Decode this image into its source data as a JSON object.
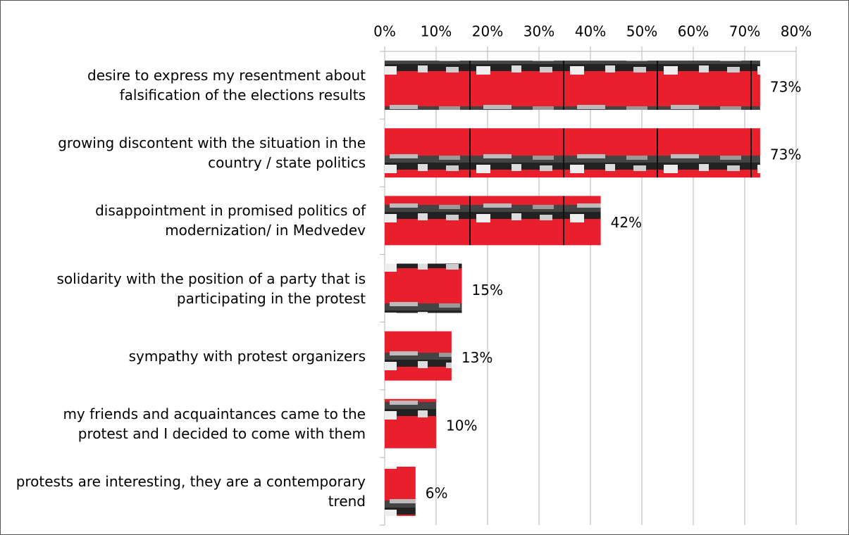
{
  "chart_data": {
    "type": "bar",
    "orientation": "horizontal",
    "categories": [
      "desire to express my resentment about falsification of the elections results",
      "growing discontent with the situation in the country / state politics",
      "disappointment in promised politics of modernization/ in Medvedev",
      "solidarity with the position of a party that is participating in the protest",
      "sympathy with protest organizers",
      "my friends and acquaintances came to the protest and I decided to come with them",
      "protests are interesting, they are a contemporary trend"
    ],
    "values": [
      73,
      73,
      42,
      15,
      13,
      10,
      6
    ],
    "value_labels": [
      "73%",
      "73%",
      "42%",
      "15%",
      "13%",
      "10%",
      "6%"
    ],
    "color": "#e8202e",
    "xlim": [
      0,
      80
    ],
    "xticks": [
      {
        "value": 0,
        "label": "0%"
      },
      {
        "value": 10,
        "label": "10%"
      },
      {
        "value": 20,
        "label": "20%"
      },
      {
        "value": 30,
        "label": "30%"
      },
      {
        "value": 40,
        "label": "40%"
      },
      {
        "value": 50,
        "label": "50%"
      },
      {
        "value": 60,
        "label": "60%"
      },
      {
        "value": 70,
        "label": "70%"
      },
      {
        "value": 80,
        "label": "80%"
      }
    ],
    "grid": true
  }
}
